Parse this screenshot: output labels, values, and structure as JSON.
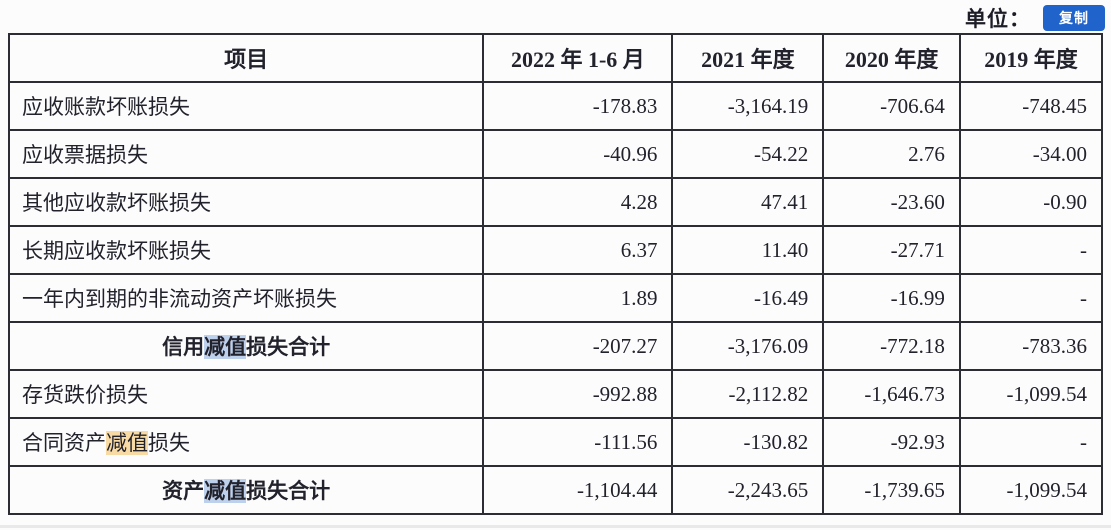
{
  "header": {
    "unit_label": "单位：",
    "copy_button_label": "复制"
  },
  "table": {
    "columns": [
      "项目",
      "2022 年 1-6 月",
      "2021 年度",
      "2020 年度",
      "2019 年度"
    ],
    "rows": [
      {
        "label": "应收账款坏账损失",
        "values": [
          "-178.83",
          "-3,164.19",
          "-706.64",
          "-748.45"
        ]
      },
      {
        "label": "应收票据损失",
        "values": [
          "-40.96",
          "-54.22",
          "2.76",
          "-34.00"
        ]
      },
      {
        "label": "其他应收款坏账损失",
        "values": [
          "4.28",
          "47.41",
          "-23.60",
          "-0.90"
        ]
      },
      {
        "label": "长期应收款坏账损失",
        "values": [
          "6.37",
          "11.40",
          "-27.71",
          "-"
        ]
      },
      {
        "label": "一年内到期的非流动资产坏账损失",
        "values": [
          "1.89",
          "-16.49",
          "-16.99",
          "-"
        ]
      },
      {
        "label_pre": "信用",
        "label_hl": "减值",
        "label_post": "损失合计",
        "highlight": "blue",
        "is_total": true,
        "values": [
          "-207.27",
          "-3,176.09",
          "-772.18",
          "-783.36"
        ]
      },
      {
        "label": "存货跌价损失",
        "values": [
          "-992.88",
          "-2,112.82",
          "-1,646.73",
          "-1,099.54"
        ]
      },
      {
        "label_pre": "合同资产",
        "label_hl": "减值",
        "label_post": "损失",
        "highlight": "amber",
        "is_total": false,
        "values": [
          "-111.56",
          "-130.82",
          "-92.93",
          "-"
        ]
      },
      {
        "label_pre": "资产",
        "label_hl": "减值",
        "label_post": "损失合计",
        "highlight": "blue",
        "is_total": true,
        "values": [
          "-1,104.44",
          "-2,243.65",
          "-1,739.65",
          "-1,099.54"
        ]
      }
    ]
  },
  "colors": {
    "copy_button_bg": "#2063cb",
    "highlight_blue": "#bdd0ec",
    "highlight_amber": "#f8dba4",
    "table_border": "#2c2c35",
    "text": "#22222c"
  }
}
